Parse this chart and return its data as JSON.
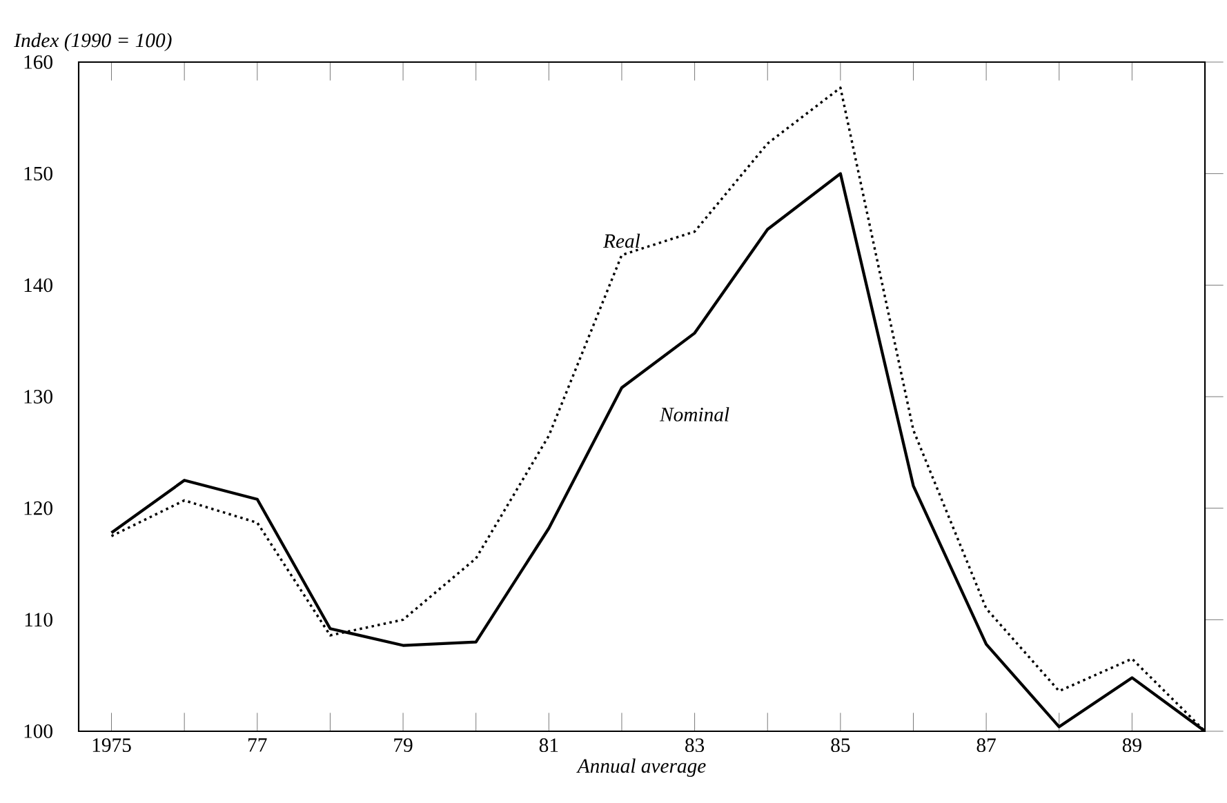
{
  "chart_data": {
    "type": "line",
    "ylabel": "Index (1990 = 100)",
    "xlabel": "Annual average",
    "x": [
      1975,
      1976,
      1977,
      1978,
      1979,
      1980,
      1981,
      1982,
      1983,
      1984,
      1985,
      1986,
      1987,
      1988,
      1989,
      1990
    ],
    "series": [
      {
        "name": "Real",
        "color": "#000000",
        "line_style": "dotted",
        "values": [
          117.5,
          120.7,
          118.7,
          108.6,
          110,
          115.5,
          126.5,
          142.7,
          144.8,
          152.7,
          157.7,
          127,
          111,
          103.6,
          106.5,
          100
        ]
      },
      {
        "name": "Nominal",
        "color": "#000000",
        "line_style": "solid",
        "values": [
          117.8,
          122.5,
          120.8,
          109.2,
          107.7,
          108,
          118.2,
          130.8,
          135.7,
          145,
          150,
          122,
          107.8,
          100.4,
          104.8,
          100
        ]
      }
    ],
    "xlim": [
      1974.55,
      1990
    ],
    "ylim": [
      100,
      160
    ],
    "xticks": [
      1975,
      {
        "value": 1976,
        "label": null
      },
      {
        "value": 1977,
        "label": "77"
      },
      {
        "value": 1978,
        "label": null
      },
      {
        "value": 1979,
        "label": "79"
      },
      {
        "value": 1980,
        "label": null
      },
      {
        "value": 1981,
        "label": "81"
      },
      {
        "value": 1982,
        "label": null
      },
      {
        "value": 1983,
        "label": "83"
      },
      {
        "value": 1984,
        "label": null
      },
      {
        "value": 1985,
        "label": "85"
      },
      {
        "value": 1986,
        "label": null
      },
      {
        "value": 1987,
        "label": "87"
      },
      {
        "value": 1988,
        "label": null
      },
      {
        "value": 1989,
        "label": "89"
      }
    ],
    "yticks": [
      100,
      110,
      120,
      130,
      140,
      150,
      160
    ],
    "marker": "none"
  }
}
